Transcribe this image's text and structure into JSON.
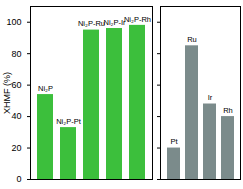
{
  "chart_data": [
    {
      "type": "bar",
      "ylabel": "XHMF (%)",
      "categories": [
        "Ni₂P",
        "Ni₂P-Pt",
        "Ni₂P-Ru",
        "Ni₂P-Ir",
        "Ni₂P-Rh"
      ],
      "values": [
        54,
        33,
        95,
        96,
        98
      ],
      "color": "#3cbf3c",
      "ylim": [
        0,
        110
      ],
      "yticks": [
        0,
        20,
        40,
        60,
        80,
        100
      ],
      "tick_labels": "y"
    },
    {
      "type": "bar",
      "categories": [
        "Pt",
        "Ru",
        "Ir",
        "Rh"
      ],
      "values": [
        20,
        85,
        48,
        40
      ],
      "color": "#7b8b8b",
      "ylim": [
        0,
        110
      ],
      "yticks": [
        0,
        20,
        40,
        60,
        80,
        100
      ],
      "tick_labels": false
    }
  ]
}
